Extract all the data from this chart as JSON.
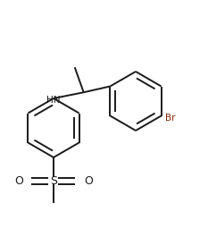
{
  "bg_color": "#ffffff",
  "line_color": "#1a1a1a",
  "br_color": "#8B2500",
  "lw": 1.4,
  "figsize": [
    2.33,
    2.65
  ],
  "dpi": 100,
  "xlim": [
    0,
    2.33
  ],
  "ylim": [
    0,
    2.65
  ]
}
